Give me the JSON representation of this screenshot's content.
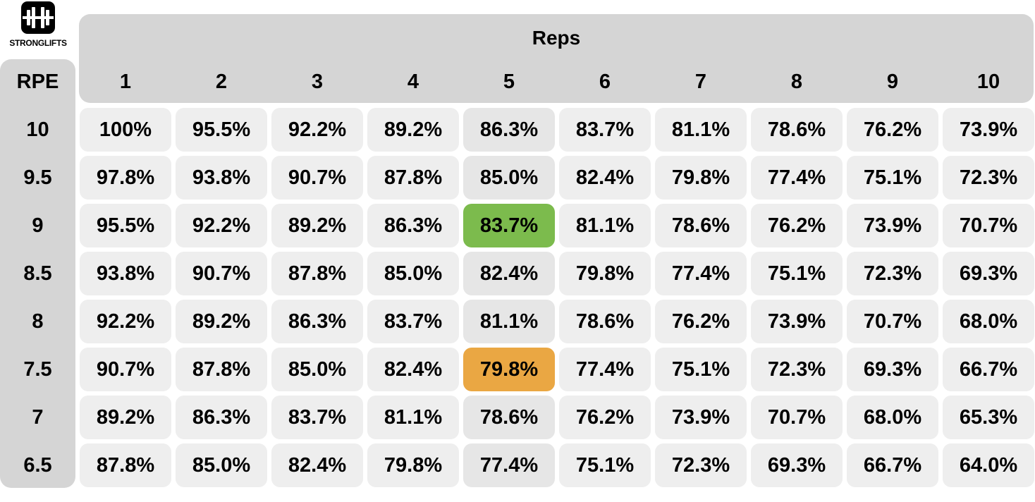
{
  "brand": {
    "name": "STRONGLIFTS"
  },
  "header": {
    "reps_label": "Reps",
    "rpe_label": "RPE"
  },
  "reps": [
    "1",
    "2",
    "3",
    "4",
    "5",
    "6",
    "7",
    "8",
    "9",
    "10"
  ],
  "rpe": [
    "10",
    "9.5",
    "9",
    "8.5",
    "8",
    "7.5",
    "7",
    "6.5"
  ],
  "rows": [
    [
      "100%",
      "95.5%",
      "92.2%",
      "89.2%",
      "86.3%",
      "83.7%",
      "81.1%",
      "78.6%",
      "76.2%",
      "73.9%"
    ],
    [
      "97.8%",
      "93.8%",
      "90.7%",
      "87.8%",
      "85.0%",
      "82.4%",
      "79.8%",
      "77.4%",
      "75.1%",
      "72.3%"
    ],
    [
      "95.5%",
      "92.2%",
      "89.2%",
      "86.3%",
      "83.7%",
      "81.1%",
      "78.6%",
      "76.2%",
      "73.9%",
      "70.7%"
    ],
    [
      "93.8%",
      "90.7%",
      "87.8%",
      "85.0%",
      "82.4%",
      "79.8%",
      "77.4%",
      "75.1%",
      "72.3%",
      "69.3%"
    ],
    [
      "92.2%",
      "89.2%",
      "86.3%",
      "83.7%",
      "81.1%",
      "78.6%",
      "76.2%",
      "73.9%",
      "70.7%",
      "68.0%"
    ],
    [
      "90.7%",
      "87.8%",
      "85.0%",
      "82.4%",
      "79.8%",
      "77.4%",
      "75.1%",
      "72.3%",
      "69.3%",
      "66.7%"
    ],
    [
      "89.2%",
      "86.3%",
      "83.7%",
      "81.1%",
      "78.6%",
      "76.2%",
      "73.9%",
      "70.7%",
      "68.0%",
      "65.3%"
    ],
    [
      "87.8%",
      "85.0%",
      "82.4%",
      "79.8%",
      "77.4%",
      "75.1%",
      "72.3%",
      "69.3%",
      "66.7%",
      "64.0%"
    ]
  ],
  "highlights": [
    {
      "rpe": "9",
      "reps": "5",
      "color": "#7cbb4d"
    },
    {
      "rpe": "7.5",
      "reps": "5",
      "color": "#eaa743"
    }
  ],
  "colors": {
    "header_bg": "#d5d5d5",
    "cell_bg": "#eeeeee",
    "highlight_green": "#7cbb4d",
    "highlight_orange": "#eaa743"
  }
}
